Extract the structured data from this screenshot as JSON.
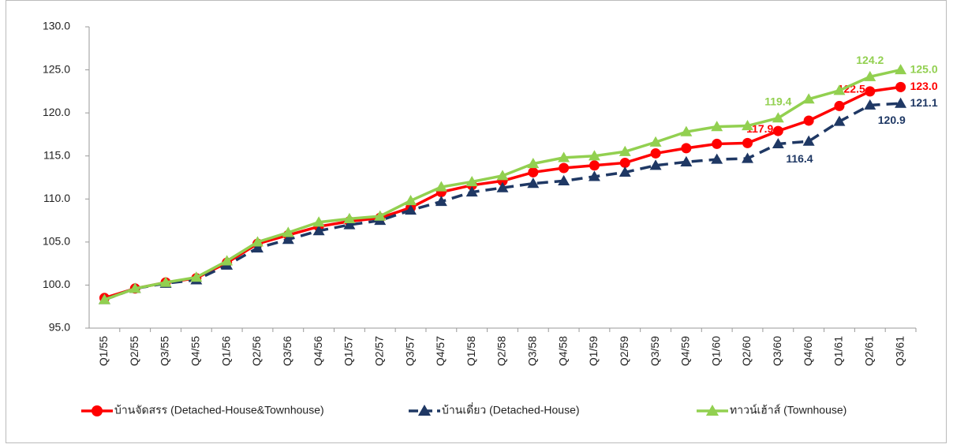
{
  "chart_data": {
    "type": "line",
    "categories": [
      "Q1/55",
      "Q2/55",
      "Q3/55",
      "Q4/55",
      "Q1/56",
      "Q2/56",
      "Q3/56",
      "Q4/56",
      "Q1/57",
      "Q2/57",
      "Q3/57",
      "Q4/57",
      "Q1/58",
      "Q2/58",
      "Q3/58",
      "Q4/58",
      "Q1/59",
      "Q2/59",
      "Q3/59",
      "Q4/59",
      "Q1/60",
      "Q2/60",
      "Q3/60",
      "Q4/60",
      "Q1/61",
      "Q2/61",
      "Q3/61"
    ],
    "series": [
      {
        "name": "บ้านจัดสรร (Detached-House&Townhouse)",
        "color": "#ff0000",
        "marker": "circle",
        "line_style": "solid",
        "values": [
          98.5,
          99.6,
          100.3,
          100.8,
          102.6,
          104.8,
          105.8,
          106.8,
          107.4,
          107.8,
          109.0,
          110.8,
          111.6,
          112.1,
          113.1,
          113.6,
          113.9,
          114.2,
          115.3,
          115.9,
          116.4,
          116.5,
          117.9,
          119.1,
          120.8,
          122.5,
          123.0
        ],
        "value_labels": [
          null,
          null,
          null,
          null,
          null,
          null,
          null,
          null,
          null,
          null,
          null,
          null,
          null,
          null,
          null,
          null,
          null,
          null,
          null,
          null,
          null,
          null,
          "117.9",
          null,
          null,
          "122.5",
          "123.0"
        ]
      },
      {
        "name": "บ้านเดี่ยว (Detached-House)",
        "color": "#1f3864",
        "marker": "triangle",
        "line_style": "dashed",
        "values": [
          98.3,
          99.6,
          100.2,
          100.6,
          102.3,
          104.3,
          105.3,
          106.3,
          107.0,
          107.5,
          108.7,
          109.7,
          110.8,
          111.3,
          111.8,
          112.1,
          112.6,
          113.1,
          113.9,
          114.3,
          114.6,
          114.7,
          116.4,
          116.7,
          119.0,
          120.9,
          121.1
        ],
        "value_labels": [
          null,
          null,
          null,
          null,
          null,
          null,
          null,
          null,
          null,
          null,
          null,
          null,
          null,
          null,
          null,
          null,
          null,
          null,
          null,
          null,
          null,
          null,
          "116.4",
          null,
          null,
          "120.9",
          "121.1"
        ]
      },
      {
        "name": "ทาวน์เฮ้าส์ (Townhouse)",
        "color": "#92d050",
        "marker": "triangle",
        "line_style": "solid",
        "values": [
          98.3,
          99.6,
          100.3,
          100.9,
          102.8,
          105.0,
          106.1,
          107.3,
          107.7,
          108.0,
          109.8,
          111.4,
          112.0,
          112.7,
          114.1,
          114.8,
          115.0,
          115.5,
          116.6,
          117.8,
          118.4,
          118.5,
          119.4,
          121.6,
          122.6,
          124.2,
          125.0
        ],
        "value_labels": [
          null,
          null,
          null,
          null,
          null,
          null,
          null,
          null,
          null,
          null,
          null,
          null,
          null,
          null,
          null,
          null,
          null,
          null,
          null,
          null,
          null,
          null,
          "119.4",
          null,
          null,
          "124.2",
          "125.0"
        ]
      }
    ],
    "ylim": [
      95,
      130
    ],
    "yticks": [
      {
        "value": 95,
        "label": "95.0"
      },
      {
        "value": 100,
        "label": "100.0"
      },
      {
        "value": 105,
        "label": "105.0"
      },
      {
        "value": 110,
        "label": "110.0"
      },
      {
        "value": 115,
        "label": "115.0"
      },
      {
        "value": 120,
        "label": "120.0"
      },
      {
        "value": 125,
        "label": "125.0"
      },
      {
        "value": 130,
        "label": "130.0"
      }
    ],
    "grid": false,
    "legend": "bottom"
  }
}
